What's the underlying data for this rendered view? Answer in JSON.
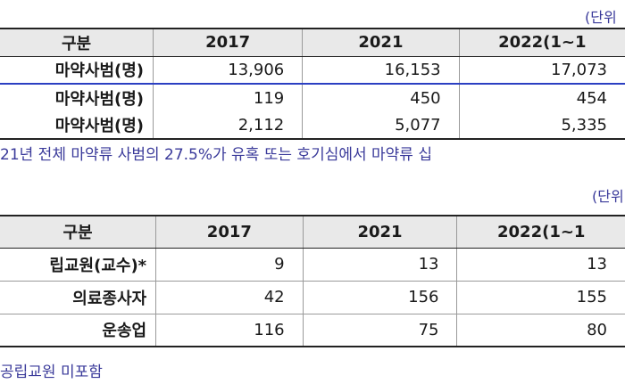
{
  "table1": {
    "unit": "(단위",
    "headers": [
      "구분",
      "2017",
      "2021",
      "2022(1~1"
    ],
    "rows": [
      {
        "label": "마약사범(명)",
        "values": [
          "13,906",
          "16,153",
          "17,073"
        ]
      },
      {
        "label": "마약사범(명)",
        "values": [
          "119",
          "450",
          "454"
        ]
      },
      {
        "label": "마약사범(명)",
        "values": [
          "2,112",
          "5,077",
          "5,335"
        ]
      }
    ],
    "note": "21년 전체 마약류 사범의 27.5%가 유혹 또는 호기심에서 마약류 십"
  },
  "table2": {
    "unit": "(단위",
    "headers": [
      "구분",
      "2017",
      "2021",
      "2022(1~1"
    ],
    "rows": [
      {
        "label": "립교원(교수)*",
        "values": [
          "9",
          "13",
          "13"
        ]
      },
      {
        "label": "의료종사자",
        "values": [
          "42",
          "156",
          "155"
        ]
      },
      {
        "label": "운송업",
        "values": [
          "116",
          "75",
          "80"
        ]
      }
    ],
    "note": "공립교원 미포함"
  }
}
